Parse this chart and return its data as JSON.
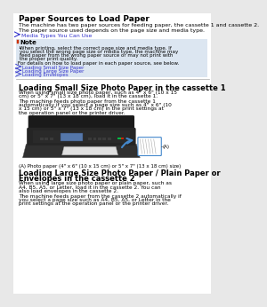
{
  "bg_color": "#ffffff",
  "page_bg": "#e8e8e8",
  "content_bg": "#ffffff",
  "title": "Paper Sources to Load Paper",
  "line1": "The machine has two paper sources for feeding paper, the cassette 1 and cassette 2.",
  "line2": "The paper source used depends on the page size and media type.",
  "link1": "Media Types You Can Use",
  "note_header": "Note",
  "note_bullet": "When printing, select the correct page size and media type. If you select the wrong page size or media type, the machine may feed paper from the wrong paper source or may not print with the proper print quality.",
  "note_line2": "For details on how to load paper in each paper source, see below.",
  "links": [
    "Loading Small Size Paper",
    "Loading Large Size Paper",
    "Loading Envelopes"
  ],
  "section1_title": "Loading Small Size Photo Paper in the cassette 1",
  "section1_p1": "When using small size photo paper, such as 4\" x 6\" (10 x 15 cm) or 5\" x 7\" (13 x 18 cm), load it in the cassette 1.",
  "section1_p2": "The machine feeds photo paper from the cassette 1 automatically if you select a page size such as 4\" x 6\" (10 x 15 cm) or 5\" x 7\" (13 x 18 cm) in the print settings at the operation panel or the printer driver.",
  "caption": "(A) Photo paper (4\" x 6\" (10 x 15 cm) or 5\" x 7\" (13 x 18 cm) size)",
  "section2_title": "Loading Large Size Photo Paper / Plain Paper or Envelopes in the cassette 2",
  "section2_p1": "When using large size photo paper or plain paper, such as A4, B5, A5, or Letter, load it in the cassette 2. You can also load envelopes in the cassette 2.",
  "section2_p2": "The machine feeds paper from the cassette 2 automatically if you select a page size such as A4, B5, A5, or Letter in the print settings at the operation panel or the printer driver.",
  "link_color": "#3333cc",
  "text_color": "#000000",
  "note_bg": "#dce6f1",
  "section_divider_color": "#aaaaaa",
  "title_color": "#000000",
  "arrow_color": "#4488cc"
}
